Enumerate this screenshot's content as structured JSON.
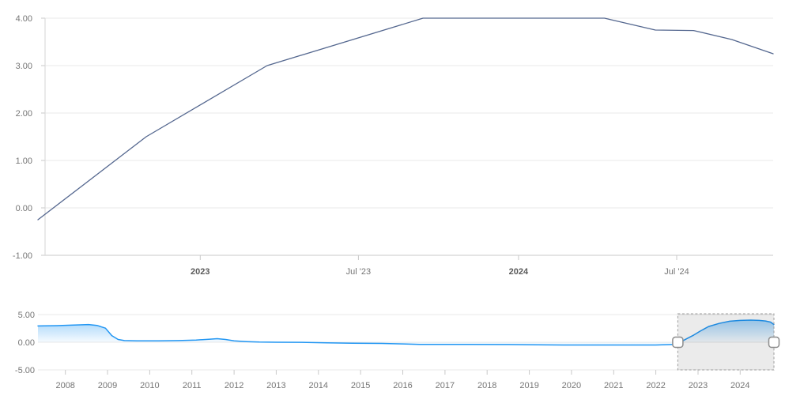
{
  "colors": {
    "main_line": "#54678f",
    "nav_line": "#2196f3",
    "nav_fill_color": "#2196f3",
    "grid": "#e8e8e8",
    "axis": "#c9c9c9",
    "tick": "#c9c9c9",
    "label": "#757575",
    "label_bold": "#5a5a5a",
    "selection_fill": "rgba(0,0,0,0.08)",
    "selection_border": "#9e9e9e",
    "handle_fill": "#ffffff",
    "handle_border": "#8c8c8c"
  },
  "chart_data": [
    {
      "type": "line",
      "name": "main-chart",
      "title": "",
      "xlabel": "",
      "ylabel": "",
      "legend": "none",
      "grid": "horizontal",
      "x_range": [
        2022.49,
        2024.8
      ],
      "y_range": [
        -1,
        4
      ],
      "y_ticks": [
        {
          "value": 4,
          "label": "4.00"
        },
        {
          "value": 3,
          "label": "3.00"
        },
        {
          "value": 2,
          "label": "2.00"
        },
        {
          "value": 1,
          "label": "1.00"
        },
        {
          "value": 0,
          "label": "0.00"
        },
        {
          "value": -1,
          "label": "-1.00"
        }
      ],
      "x_ticks": [
        {
          "pos": 2023.0,
          "label": "2023",
          "bold": true
        },
        {
          "pos": 2023.497,
          "label": "Jul '23",
          "bold": false
        },
        {
          "pos": 2024.0,
          "label": "2024",
          "bold": true
        },
        {
          "pos": 2024.497,
          "label": "Jul '24",
          "bold": false
        }
      ],
      "series": [
        {
          "name": "rate",
          "color": "#54678f",
          "points": [
            [
              2022.49,
              -0.25
            ],
            [
              2022.83,
              1.5
            ],
            [
              2023.21,
              3.0
            ],
            [
              2023.7,
              4.0
            ],
            [
              2024.27,
              4.0
            ],
            [
              2024.43,
              3.75
            ],
            [
              2024.55,
              3.74
            ],
            [
              2024.67,
              3.55
            ],
            [
              2024.8,
              3.25
            ]
          ]
        }
      ]
    },
    {
      "type": "area",
      "name": "navigator",
      "title": "",
      "xlabel": "",
      "ylabel": "",
      "legend": "none",
      "grid": "horizontal",
      "x_range": [
        2007.35,
        2024.8
      ],
      "y_range": [
        -5,
        5
      ],
      "y_ticks": [
        {
          "value": 5,
          "label": "5.00"
        },
        {
          "value": 0,
          "label": "0.00"
        },
        {
          "value": -5,
          "label": "-5.00"
        }
      ],
      "x_ticks": [
        {
          "pos": 2008,
          "label": "2008"
        },
        {
          "pos": 2009,
          "label": "2009"
        },
        {
          "pos": 2010,
          "label": "2010"
        },
        {
          "pos": 2011,
          "label": "2011"
        },
        {
          "pos": 2012,
          "label": "2012"
        },
        {
          "pos": 2013,
          "label": "2013"
        },
        {
          "pos": 2014,
          "label": "2014"
        },
        {
          "pos": 2015,
          "label": "2015"
        },
        {
          "pos": 2016,
          "label": "2016"
        },
        {
          "pos": 2017,
          "label": "2017"
        },
        {
          "pos": 2018,
          "label": "2018"
        },
        {
          "pos": 2019,
          "label": "2019"
        },
        {
          "pos": 2020,
          "label": "2020"
        },
        {
          "pos": 2021,
          "label": "2021"
        },
        {
          "pos": 2022,
          "label": "2022"
        },
        {
          "pos": 2023,
          "label": "2023"
        },
        {
          "pos": 2024,
          "label": "2024"
        }
      ],
      "series": [
        {
          "name": "rate-overview",
          "color": "#2196f3",
          "fill_color": "#2196f3",
          "fill_opacity_top": 0.5,
          "fill_opacity_bottom": 0.04,
          "baseline": 0,
          "points": [
            [
              2007.35,
              2.95
            ],
            [
              2007.8,
              3.0
            ],
            [
              2008.2,
              3.1
            ],
            [
              2008.55,
              3.2
            ],
            [
              2008.75,
              3.05
            ],
            [
              2008.95,
              2.55
            ],
            [
              2009.1,
              1.2
            ],
            [
              2009.25,
              0.5
            ],
            [
              2009.4,
              0.3
            ],
            [
              2009.7,
              0.25
            ],
            [
              2010.2,
              0.25
            ],
            [
              2010.7,
              0.3
            ],
            [
              2011.1,
              0.4
            ],
            [
              2011.4,
              0.55
            ],
            [
              2011.6,
              0.65
            ],
            [
              2011.8,
              0.5
            ],
            [
              2012.0,
              0.25
            ],
            [
              2012.3,
              0.12
            ],
            [
              2012.6,
              0.03
            ],
            [
              2013.0,
              0.0
            ],
            [
              2013.6,
              -0.02
            ],
            [
              2014.2,
              -0.1
            ],
            [
              2014.8,
              -0.18
            ],
            [
              2015.5,
              -0.22
            ],
            [
              2016.0,
              -0.3
            ],
            [
              2016.4,
              -0.4
            ],
            [
              2017.5,
              -0.4
            ],
            [
              2018.5,
              -0.42
            ],
            [
              2019.2,
              -0.45
            ],
            [
              2019.8,
              -0.5
            ],
            [
              2021.0,
              -0.5
            ],
            [
              2022.0,
              -0.5
            ],
            [
              2022.45,
              -0.4
            ],
            [
              2022.6,
              0.1
            ],
            [
              2022.75,
              0.7
            ],
            [
              2022.9,
              1.3
            ],
            [
              2023.05,
              2.0
            ],
            [
              2023.25,
              2.85
            ],
            [
              2023.5,
              3.4
            ],
            [
              2023.75,
              3.8
            ],
            [
              2024.0,
              3.95
            ],
            [
              2024.25,
              4.0
            ],
            [
              2024.45,
              3.95
            ],
            [
              2024.6,
              3.85
            ],
            [
              2024.72,
              3.65
            ],
            [
              2024.8,
              3.2
            ]
          ]
        }
      ],
      "selection": {
        "start": 2022.52,
        "end": 2024.8
      }
    }
  ]
}
